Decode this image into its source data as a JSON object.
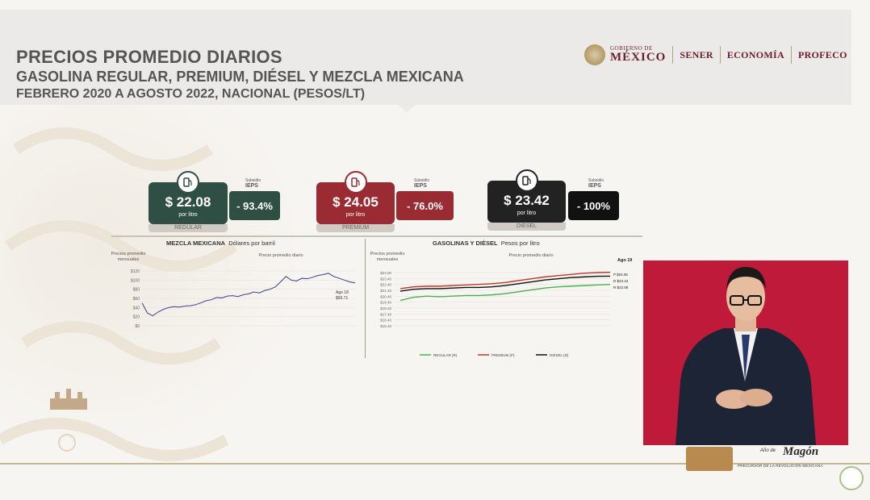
{
  "header": {
    "title_line1": "PRECIOS PROMEDIO DIARIOS",
    "title_line2": "GASOLINA REGULAR, PREMIUM, DIÉSEL Y MEZCLA MEXICANA",
    "title_line3": "FEBRERO 2020 A AGOSTO 2022, NACIONAL (PESOS/LT)"
  },
  "logos": {
    "gob_small": "GOBIERNO DE",
    "gob_big": "MÉXICO",
    "sener": "SENER",
    "economia": "ECONOMÍA",
    "profeco": "PROFECO"
  },
  "cards": [
    {
      "price": "$ 22.08",
      "unit": "por litro",
      "label": "REGULAR",
      "ieps_small": "Subsidio",
      "ieps_label": "IEPS",
      "ieps_value": "- 93.4%",
      "color": "#2f4f44"
    },
    {
      "price": "$ 24.05",
      "unit": "por litro",
      "label": "PREMIUM",
      "ieps_small": "Subsidio",
      "ieps_label": "IEPS",
      "ieps_value": "- 76.0%",
      "color": "#9b2b32"
    },
    {
      "price": "$ 23.42",
      "unit": "por litro",
      "label": "DIÉSEL",
      "ieps_small": "Subsidio",
      "ieps_label": "IEPS",
      "ieps_value": "- 100%",
      "color": "#222222"
    }
  ],
  "chart_data": [
    {
      "type": "line",
      "title": "MEZCLA MEXICANA",
      "subtitle": "Dólares por barril",
      "ylabel": "Precios promedio mensuales",
      "note": "Precio promedio diario",
      "end_label": "Ago 18",
      "end_value_label": "$93.71",
      "yticks": [
        "$120",
        "$100",
        "$80",
        "$60",
        "$40",
        "$20",
        "$0"
      ],
      "ylim": [
        0,
        120
      ],
      "series": [
        {
          "color": "#3a3f8f",
          "values": [
            50,
            28,
            22,
            30,
            36,
            40,
            42,
            41,
            43,
            44,
            46,
            50,
            55,
            57,
            62,
            61,
            65,
            66,
            64,
            68,
            70,
            74,
            72,
            77,
            80,
            85,
            96,
            108,
            100,
            98,
            104,
            103,
            106,
            110,
            112,
            115,
            108,
            104,
            100,
            96,
            94
          ]
        }
      ]
    },
    {
      "type": "line",
      "title": "GASOLINAS Y DIÉSEL",
      "subtitle": "Pesos por litro",
      "ylabel": "Precios promedio mensuales",
      "note": "Precio promedio diario",
      "end_label": "Ago 19",
      "yticks": [
        "$24.00",
        "$23.40",
        "$22.40",
        "$21.40",
        "$20.40",
        "$19.40",
        "$18.40",
        "$17.40",
        "$16.40",
        "$15.40"
      ],
      "ylim": [
        15.4,
        24.0
      ],
      "legend": [
        "REGULAR (R)",
        "PREMIUM (P)",
        "DIÉSEL (D)"
      ],
      "end_value_labels": [
        "P $24.05",
        "D $23.42",
        "R $22.08"
      ],
      "series": [
        {
          "color": "#4caf50",
          "values": [
            19.5,
            20.0,
            20.2,
            20.1,
            20.2,
            20.3,
            20.3,
            20.4,
            20.6,
            20.9,
            21.2,
            21.5,
            21.7,
            21.8,
            21.9,
            22.0,
            22.08
          ]
        },
        {
          "color": "#c0392b",
          "values": [
            21.4,
            21.7,
            21.8,
            21.8,
            21.9,
            22.0,
            22.1,
            22.2,
            22.4,
            22.7,
            23.0,
            23.3,
            23.5,
            23.7,
            23.9,
            24.0,
            24.05
          ]
        },
        {
          "color": "#111111",
          "values": [
            21.0,
            21.3,
            21.4,
            21.4,
            21.5,
            21.6,
            21.6,
            21.7,
            21.9,
            22.2,
            22.5,
            22.8,
            23.0,
            23.2,
            23.3,
            23.4,
            23.42
          ]
        }
      ]
    }
  ],
  "footer": {
    "magon_title": "Magón",
    "magon_prefix": "Año de",
    "magon_sub": "PRECURSOR DE LA REVOLUCIÓN MEXICANA"
  }
}
